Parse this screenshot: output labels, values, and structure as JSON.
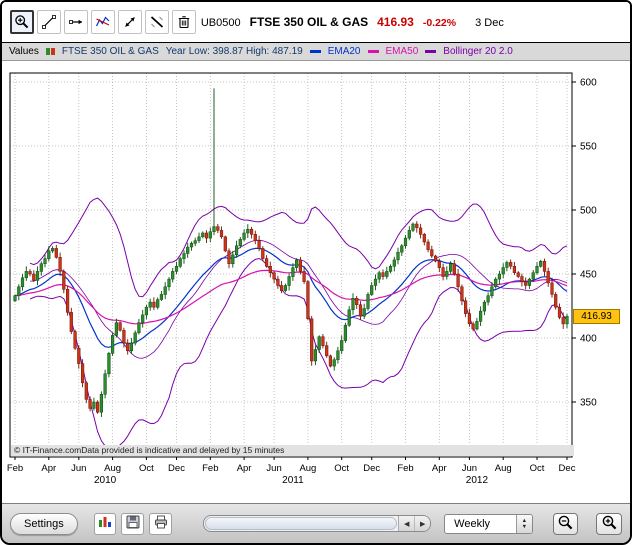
{
  "header": {
    "symbol": "UB0500",
    "name": "FTSE 350 OIL & GAS",
    "price": "416.93",
    "change": "-0.22%",
    "date": "3 Dec"
  },
  "toolbar": {
    "tools": [
      "zoom-tool",
      "trendline-tool",
      "horizontal-line-tool",
      "indicator-tool",
      "move-tool",
      "erase-drawings-tool",
      "trash-tool"
    ],
    "selected_tool": "zoom-tool"
  },
  "legend": {
    "values_label": "Values",
    "series_name": "FTSE 350 OIL & GAS",
    "range_label": "Year Low: 398.87 High: 487.19",
    "ema20_label": "EMA20",
    "ema50_label": "EMA50",
    "bollinger_label": "Bollinger 20 2.0"
  },
  "footnote": "© IT-Finance.comData provided is indicative and delayed by 15 minutes",
  "bottom_bar": {
    "settings_label": "Settings",
    "icons": [
      "chart-type-icon",
      "save-icon",
      "print-icon"
    ],
    "interval_value": "Weekly",
    "zoom_out_icon": "magnifier-minus",
    "zoom_in_icon": "magnifier-plus",
    "scroll_left_glyph": "◀",
    "scroll_right_glyph": "▶",
    "stepper_up_glyph": "▲",
    "stepper_down_glyph": "▼"
  },
  "chart_data": {
    "type": "candlestick",
    "title": "FTSE 350 OIL & GAS",
    "timeframe": "Weekly",
    "start": "Feb 2010",
    "end": "Dec 2012",
    "last_price": 416.93,
    "last_price_label": "416.93",
    "y_domain": [
      307,
      607
    ],
    "y_ticks": [
      350,
      400,
      450,
      500,
      550,
      600
    ],
    "closes": [
      433,
      440,
      447,
      452,
      450,
      445,
      452,
      458,
      462,
      468,
      470,
      463,
      452,
      438,
      420,
      405,
      392,
      380,
      365,
      352,
      345,
      350,
      342,
      356,
      372,
      388,
      402,
      412,
      406,
      396,
      390,
      396,
      404,
      412,
      418,
      424,
      428,
      424,
      430,
      434,
      440,
      446,
      452,
      456,
      462,
      466,
      471,
      474,
      476,
      479,
      482,
      478,
      483,
      487,
      484,
      479,
      468,
      458,
      465,
      472,
      477,
      482,
      485,
      481,
      476,
      470,
      462,
      456,
      451,
      446,
      441,
      437,
      441,
      448,
      455,
      461,
      452,
      444,
      415,
      382,
      391,
      401,
      394,
      386,
      378,
      383,
      390,
      398,
      410,
      422,
      431,
      426,
      417,
      423,
      434,
      441,
      446,
      451,
      448,
      452,
      456,
      461,
      467,
      472,
      478,
      484,
      489,
      486,
      481,
      475,
      469,
      464,
      460,
      455,
      448,
      452,
      458,
      450,
      440,
      429,
      419,
      411,
      407,
      413,
      421,
      428,
      433,
      440,
      446,
      450,
      455,
      459,
      456,
      451,
      448,
      444,
      441,
      446,
      451,
      456,
      460,
      452,
      443,
      434,
      424,
      416,
      411,
      416.93
    ],
    "spike": {
      "index": 53,
      "high": 595
    },
    "indicators": [
      {
        "name": "EMA20",
        "type": "ema",
        "period": 20,
        "color": "#0033cc"
      },
      {
        "name": "EMA50",
        "type": "ema",
        "period": 50,
        "color": "#d911b0"
      },
      {
        "name": "Bollinger 20 2.0",
        "type": "bollinger",
        "period": 20,
        "stddev": 2.0,
        "color": "#7a00a8"
      }
    ],
    "x_ticks": [
      {
        "label": "Feb",
        "week": 0
      },
      {
        "label": "Apr",
        "week": 9
      },
      {
        "label": "Jun",
        "week": 17
      },
      {
        "label": "Aug",
        "week": 26
      },
      {
        "label": "Oct",
        "week": 35
      },
      {
        "label": "Dec",
        "week": 43
      },
      {
        "label": "Feb",
        "week": 52
      },
      {
        "label": "Apr",
        "week": 61
      },
      {
        "label": "Jun",
        "week": 69
      },
      {
        "label": "Aug",
        "week": 78
      },
      {
        "label": "Oct",
        "week": 87
      },
      {
        "label": "Dec",
        "week": 95
      },
      {
        "label": "Feb",
        "week": 104
      },
      {
        "label": "Apr",
        "week": 113
      },
      {
        "label": "Jun",
        "week": 121
      },
      {
        "label": "Aug",
        "week": 130
      },
      {
        "label": "Oct",
        "week": 139
      },
      {
        "label": "Dec",
        "week": 147
      }
    ],
    "year_ticks": [
      {
        "label": "2010",
        "week": 24
      },
      {
        "label": "2011",
        "week": 74
      },
      {
        "label": "2012",
        "week": 123
      }
    ],
    "colors": {
      "candle_up": "#2e8b2e",
      "candle_up_stroke": "#0b4d10",
      "candle_down": "#cc3318",
      "candle_down_stroke": "#6e1505",
      "ema20": "#0033cc",
      "ema50": "#d911b0",
      "bollinger": "#7a00a8",
      "grid": "#b3b3b3",
      "price_label_bg": "#ffc20e",
      "change_color": "#cc0000"
    }
  }
}
